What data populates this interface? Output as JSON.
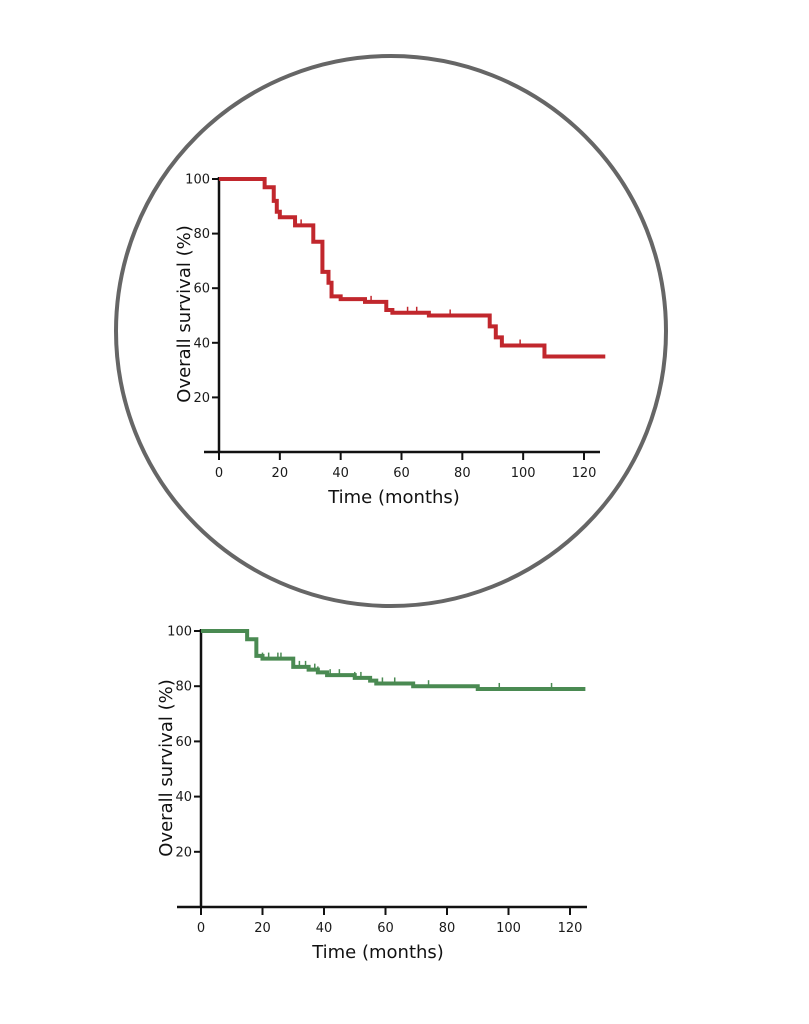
{
  "chart_data": [
    {
      "type": "line",
      "subtype": "kaplan-meier-step",
      "highlighted": true,
      "highlight_shape": "circle",
      "title": "",
      "xlabel": "Time (months)",
      "ylabel": "Overall survival (%)",
      "xlim": [
        0,
        125
      ],
      "ylim": [
        0,
        100
      ],
      "xticks": [
        0,
        20,
        40,
        60,
        80,
        100,
        120
      ],
      "yticks": [
        20,
        40,
        60,
        80,
        100
      ],
      "grid": false,
      "legend": null,
      "series": [
        {
          "name": "Survival curve (red)",
          "color": "#c1272d",
          "x": [
            0,
            15,
            18,
            19,
            20,
            21,
            25,
            31,
            34,
            36,
            37,
            40,
            48,
            55,
            57,
            69,
            89,
            91,
            93,
            107,
            127
          ],
          "values": [
            100,
            97,
            92,
            88,
            86,
            86,
            83,
            77,
            66,
            62,
            57,
            56,
            55,
            52,
            51,
            50,
            46,
            42,
            39,
            35,
            35
          ],
          "censor_marks_x": [
            20,
            27,
            34,
            36,
            50,
            55,
            62,
            65,
            76,
            99
          ]
        }
      ]
    },
    {
      "type": "line",
      "subtype": "kaplan-meier-step",
      "highlighted": false,
      "title": "",
      "xlabel": "Time (months)",
      "ylabel": "Overall survival (%)",
      "xlim": [
        0,
        125
      ],
      "ylim": [
        0,
        100
      ],
      "xticks": [
        0,
        20,
        40,
        60,
        80,
        100,
        120
      ],
      "yticks": [
        20,
        40,
        60,
        80,
        100
      ],
      "grid": false,
      "legend": null,
      "series": [
        {
          "name": "Survival curve (green)",
          "color": "#4a8a52",
          "x": [
            0,
            15,
            18,
            20,
            30,
            35,
            38,
            41,
            50,
            55,
            57,
            69,
            90,
            125
          ],
          "values": [
            100,
            97,
            91,
            90,
            87,
            86,
            85,
            84,
            83,
            82,
            81,
            80,
            79,
            79
          ],
          "censor_marks_x": [
            20,
            22,
            25,
            26,
            32,
            34,
            37,
            38,
            42,
            45,
            50,
            52,
            59,
            63,
            74,
            97,
            114
          ]
        }
      ]
    }
  ],
  "top_chart": {
    "ylabel": "Overall survival (%)",
    "xlabel": "Time (months)",
    "yticks": [
      "100",
      "80",
      "60",
      "40",
      "20"
    ],
    "xticks": [
      "0",
      "20",
      "40",
      "60",
      "80",
      "100",
      "120"
    ]
  },
  "bottom_chart": {
    "ylabel": "Overall survival (%)",
    "xlabel": "Time (months)",
    "yticks": [
      "100",
      "80",
      "60",
      "40",
      "20"
    ],
    "xticks": [
      "0",
      "20",
      "40",
      "60",
      "80",
      "100",
      "120"
    ]
  },
  "colors": {
    "highlight_circle": "#666666",
    "axis": "#111111",
    "top_curve": "#c1272d",
    "bottom_curve": "#4a8a52"
  }
}
